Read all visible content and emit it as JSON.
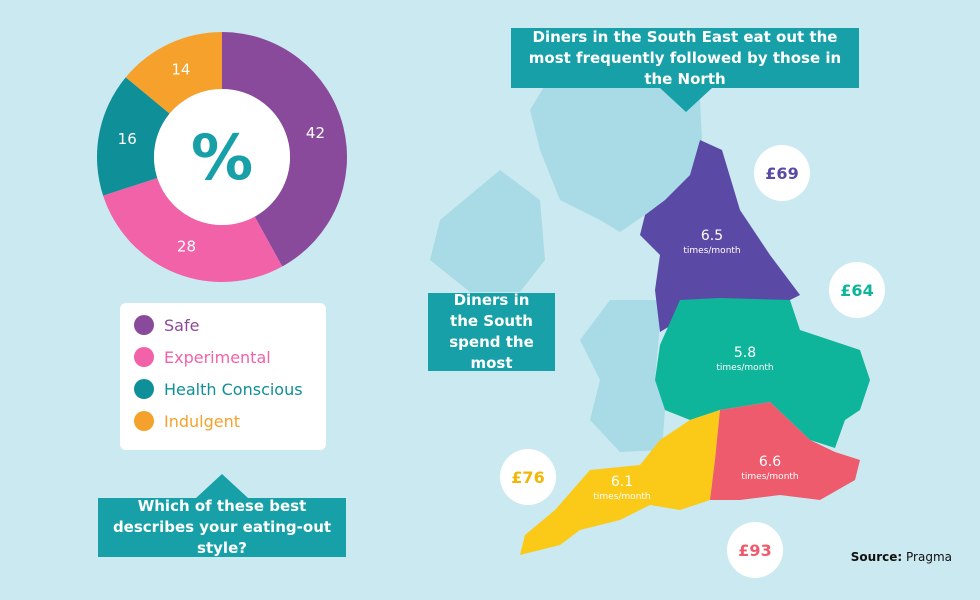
{
  "chart_data": {
    "type": "donut",
    "title": "Which of these best describes your eating-out style?",
    "center_label": "%",
    "categories": [
      "Safe",
      "Experimental",
      "Health Conscious",
      "Indulgent"
    ],
    "values": [
      42,
      28,
      16,
      14
    ],
    "colors": [
      "#8a4a9b",
      "#f162a9",
      "#0f8f98",
      "#f5a12b"
    ]
  },
  "map": {
    "callout_top": "Diners in the South East eat out the most frequently followed by those in the North",
    "callout_side": "Diners in the South spend the most",
    "regions": [
      {
        "frequency": 6.5,
        "unit": "times/month",
        "spend": "£69",
        "color": "#5a4aa6"
      },
      {
        "frequency": 5.8,
        "unit": "times/month",
        "spend": "£64",
        "color": "#0fb59a"
      },
      {
        "frequency": 6.1,
        "unit": "times/month",
        "spend": "£76",
        "color": "#fbc918"
      },
      {
        "frequency": 6.6,
        "unit": "times/month",
        "spend": "£93",
        "color": "#ee5b6c"
      }
    ]
  },
  "source_label": "Source:",
  "source": "Pragma"
}
